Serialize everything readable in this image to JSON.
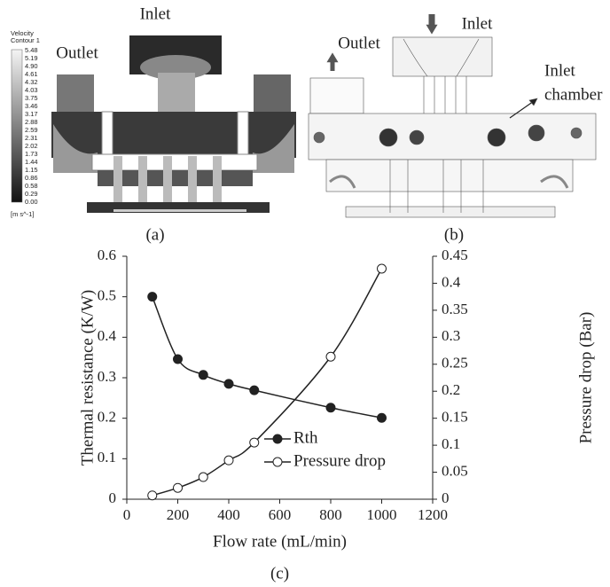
{
  "panel_a": {
    "inlet": "Inlet",
    "outlet": "Outlet",
    "legend_title": [
      "Velocity",
      "Contour 1"
    ],
    "legend_labels": [
      "5.48",
      "5.19",
      "4.90",
      "4.61",
      "4.32",
      "4.03",
      "3.75",
      "3.46",
      "3.17",
      "2.88",
      "2.59",
      "2.31",
      "2.02",
      "1.73",
      "1.44",
      "1.15",
      "0.86",
      "0.58",
      "0.29",
      "0.00"
    ],
    "legend_unit": "[m s^-1]",
    "caption": "(a)"
  },
  "panel_b": {
    "inlet": "Inlet",
    "outlet": "Outlet",
    "chamber": [
      "Inlet",
      "chamber"
    ],
    "caption": "(b)"
  },
  "chart_data": {
    "type": "line",
    "caption": "(c)",
    "x_label": "Flow rate (mL/min)",
    "y_label": "Thermal resistance (K/W)",
    "y2_label": "Pressure drop (Bar)",
    "x": [
      100,
      200,
      300,
      400,
      500,
      800,
      1000
    ],
    "series": [
      {
        "name": "Rth",
        "color": "#222222",
        "marker": "filled",
        "values": [
          0.5,
          0.346,
          0.307,
          0.285,
          0.269,
          0.226,
          0.201
        ]
      },
      {
        "name": "Pressure drop",
        "color": "#222222",
        "marker": "open",
        "axis": "y2",
        "values": [
          0.007,
          0.021,
          0.041,
          0.072,
          0.105,
          0.264,
          0.427
        ]
      }
    ],
    "xlim": [
      0,
      1200
    ],
    "xticks": [
      0,
      200,
      400,
      600,
      800,
      1000,
      1200
    ],
    "ylim": [
      0,
      0.6
    ],
    "yticks": [
      0,
      0.1,
      0.2,
      0.3,
      0.4,
      0.5,
      0.6
    ],
    "y2lim": [
      0,
      0.45
    ],
    "y2ticks": [
      0,
      0.05,
      0.1,
      0.15,
      0.2,
      0.25,
      0.3,
      0.35,
      0.4,
      0.45
    ],
    "legend": "lower-right"
  }
}
